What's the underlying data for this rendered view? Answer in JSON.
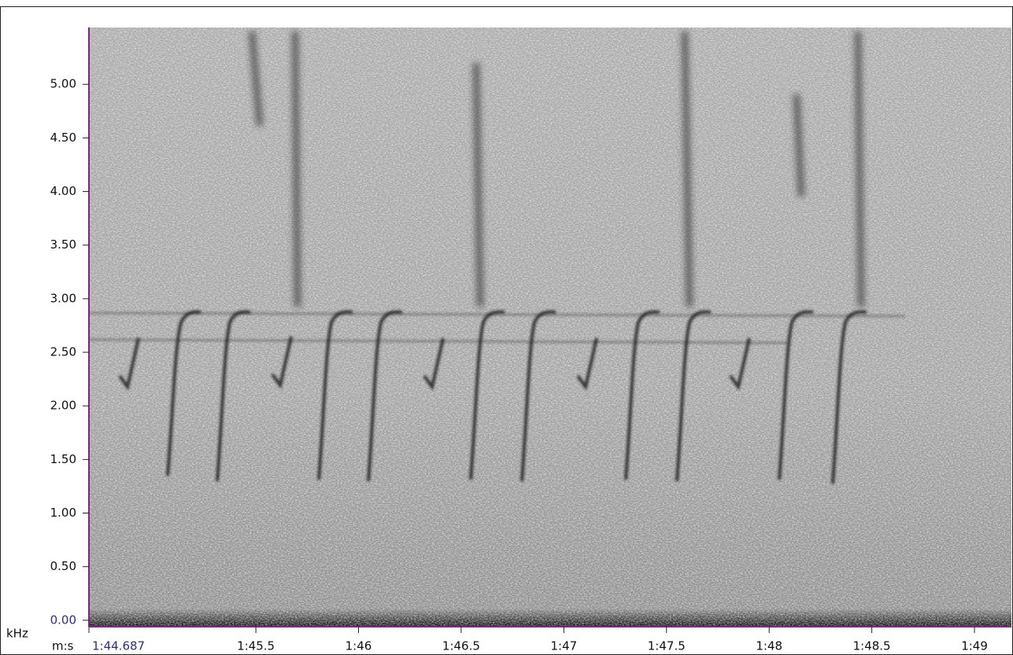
{
  "chart_data": {
    "type": "spectrogram",
    "y_label": "kHz",
    "x_label": "m:s",
    "xlim": [
      104.687,
      109.18
    ],
    "ylim": [
      -0.06,
      5.53
    ],
    "xticks": [
      {
        "value": 104.687,
        "label": "1:44.687"
      },
      {
        "value": 105.5,
        "label": "1:45.5"
      },
      {
        "value": 106,
        "label": "1:46"
      },
      {
        "value": 106.5,
        "label": "1:46.5"
      },
      {
        "value": 107,
        "label": "1:47"
      },
      {
        "value": 107.5,
        "label": "1:47.5"
      },
      {
        "value": 108,
        "label": "1:48"
      },
      {
        "value": 108.5,
        "label": "1:48.5"
      },
      {
        "value": 109,
        "label": "1:49"
      }
    ],
    "yticks": [
      {
        "value": 0,
        "label": "0.00"
      },
      {
        "value": 0.5,
        "label": "0.50"
      },
      {
        "value": 1,
        "label": "1.00"
      },
      {
        "value": 1.5,
        "label": "1.50"
      },
      {
        "value": 2,
        "label": "2.00"
      },
      {
        "value": 2.5,
        "label": "2.50"
      },
      {
        "value": 3,
        "label": "3.00"
      },
      {
        "value": 3.5,
        "label": "3.50"
      },
      {
        "value": 4,
        "label": "4.00"
      },
      {
        "value": 4.5,
        "label": "4.50"
      },
      {
        "value": 5,
        "label": "5.00"
      }
    ],
    "axis_color": "#8a1f8a"
  }
}
